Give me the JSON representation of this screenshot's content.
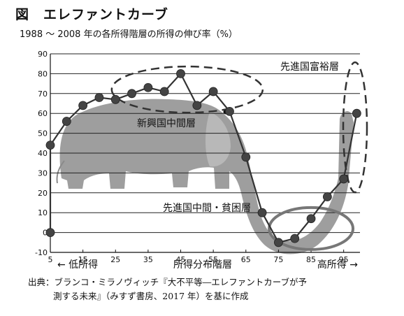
{
  "header": {
    "title": "図　エレファントカーブ",
    "subtitle": "1988 〜 2008 年の各所得階層の所得の伸び率（%）"
  },
  "chart_data": {
    "type": "line",
    "x": [
      0,
      5,
      10,
      15,
      20,
      25,
      30,
      35,
      40,
      45,
      50,
      55,
      60,
      65,
      70,
      75,
      80,
      85,
      90,
      95,
      100
    ],
    "series": [
      {
        "values": [
          0,
          44,
          56,
          64,
          68,
          67,
          70,
          73,
          71,
          80,
          64,
          71,
          61,
          38,
          10,
          -5,
          -3,
          7,
          18,
          27,
          60
        ]
      }
    ],
    "xticks": [
      "5",
      "15",
      "25",
      "35",
      "45",
      "55",
      "65",
      "75",
      "85",
      "95"
    ],
    "yticks": [
      "-10",
      "0",
      "10",
      "20",
      "30",
      "40",
      "50",
      "60",
      "70",
      "80",
      "90"
    ],
    "ylim": [
      -10,
      90
    ],
    "xlim": [
      5,
      100
    ],
    "grid": true,
    "annotations": {
      "advanced_rich": "先進国富裕層",
      "emerging_middle": "新興国中間層",
      "advanced_middle_poor": "先進国中間・貧困層"
    },
    "xaxis": {
      "low": "← 低所得",
      "center": "所得分布階層",
      "high": "高所得 →"
    },
    "colors": {
      "line": "#333333",
      "marker": "#444444",
      "elephant": "#9e9e9e",
      "grid": "#222222"
    }
  },
  "footer": {
    "source_line1": "出典：ブランコ・ミラノヴィッチ『大不平等―エレファントカーブが予",
    "source_line2": "測する未来』（みすず書房、2017 年）を基に作成"
  }
}
